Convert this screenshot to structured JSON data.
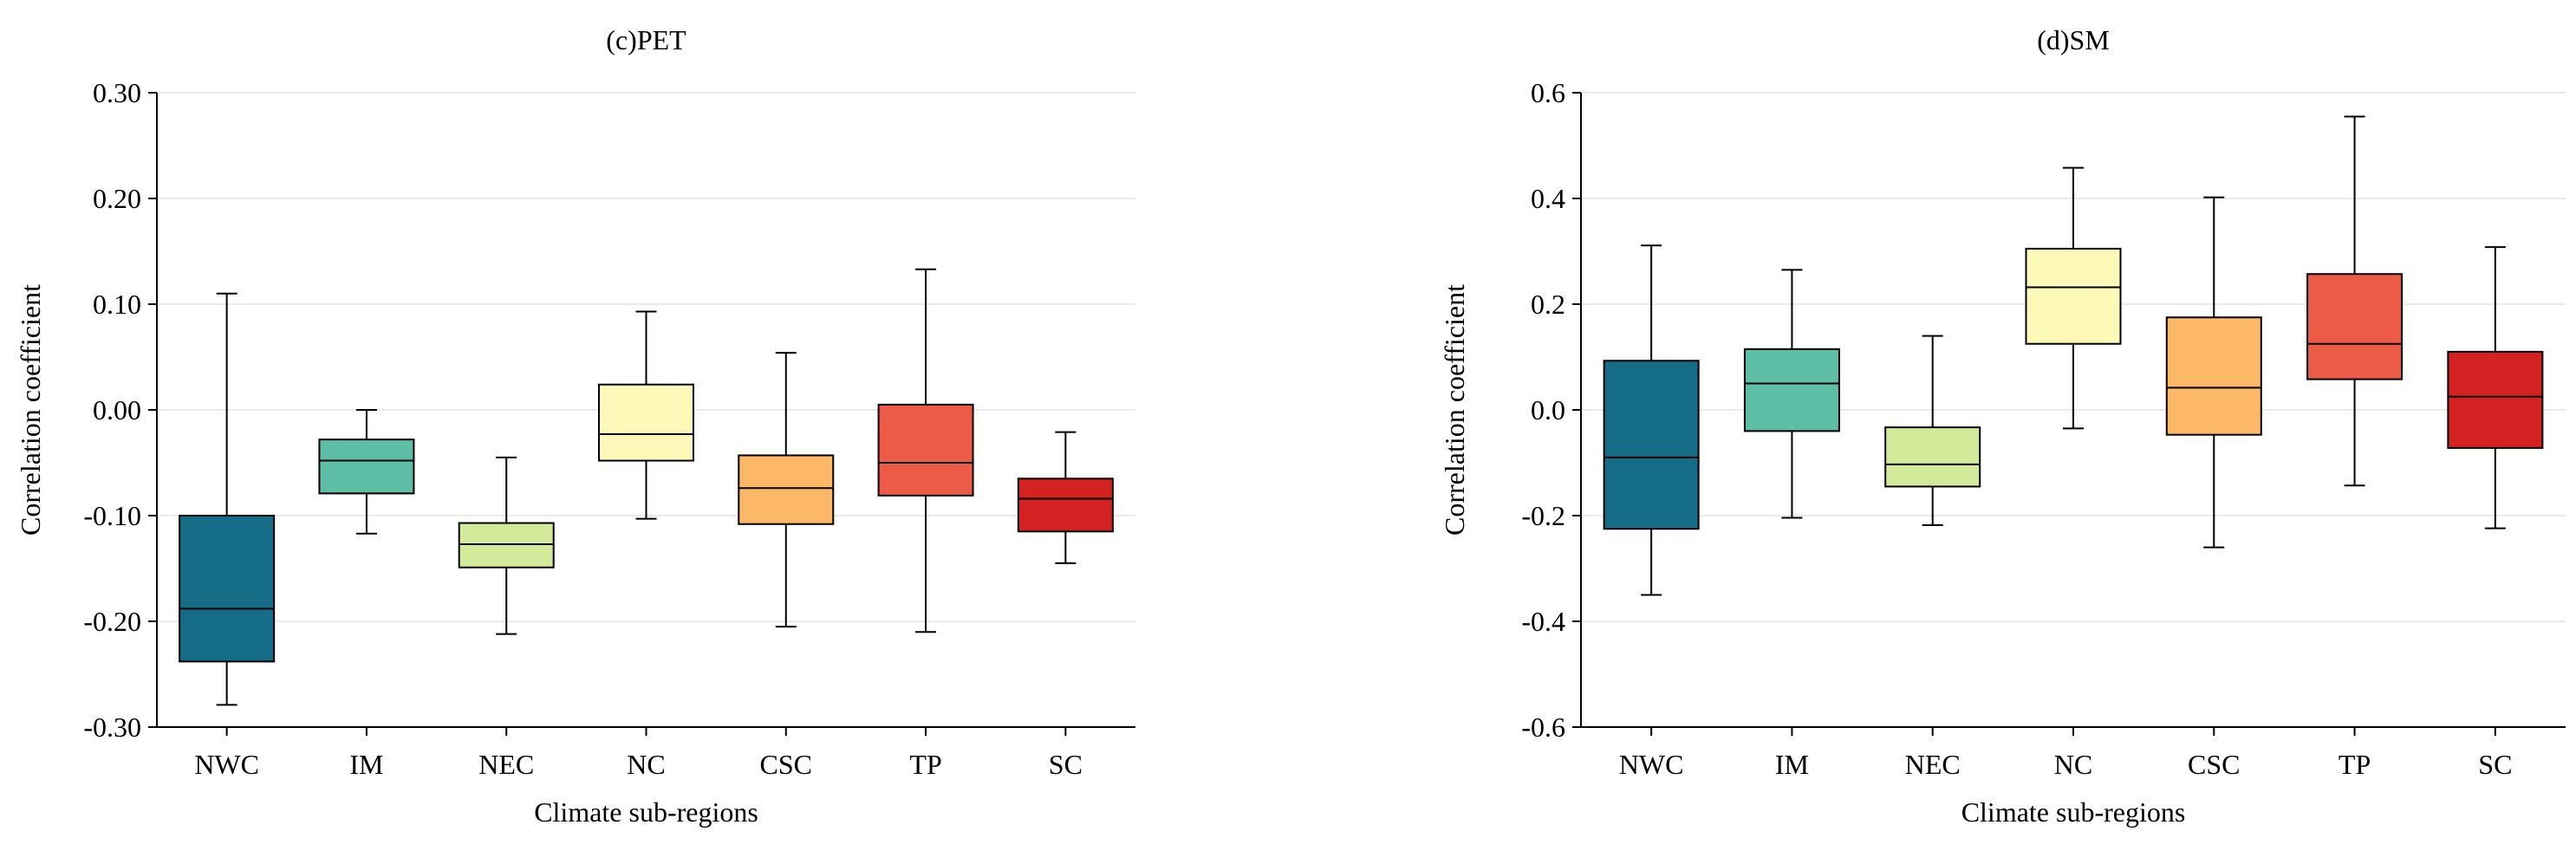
{
  "chart_data": [
    {
      "type": "box",
      "title": "(c)PET",
      "xlabel": "Climate sub-regions",
      "ylabel": "Correlation coefficient",
      "ylim": [
        -0.3,
        0.3
      ],
      "yticks": [
        0.3,
        0.2,
        0.1,
        0.0,
        -0.1,
        -0.2,
        -0.3
      ],
      "ytick_labels": [
        "0.30",
        "0.20",
        "0.10",
        "0.00",
        "-0.10",
        "-0.20",
        "-0.30"
      ],
      "grid": true,
      "categories": [
        "NWC",
        "IM",
        "NEC",
        "NC",
        "CSC",
        "TP",
        "SC"
      ],
      "colors": [
        "#146c86",
        "#5fbfa6",
        "#d2ea99",
        "#fdfab9",
        "#fdb867",
        "#ec5b45",
        "#d42121"
      ],
      "boxes": [
        {
          "whislo": -0.279,
          "q1": -0.238,
          "med": -0.188,
          "q3": -0.1,
          "whishi": 0.11
        },
        {
          "whislo": -0.117,
          "q1": -0.079,
          "med": -0.048,
          "q3": -0.028,
          "whishi": 0.0
        },
        {
          "whislo": -0.212,
          "q1": -0.149,
          "med": -0.127,
          "q3": -0.107,
          "whishi": -0.045
        },
        {
          "whislo": -0.103,
          "q1": -0.048,
          "med": -0.023,
          "q3": 0.024,
          "whishi": 0.093
        },
        {
          "whislo": -0.205,
          "q1": -0.108,
          "med": -0.074,
          "q3": -0.043,
          "whishi": 0.054
        },
        {
          "whislo": -0.21,
          "q1": -0.081,
          "med": -0.05,
          "q3": 0.005,
          "whishi": 0.133
        },
        {
          "whislo": -0.145,
          "q1": -0.115,
          "med": -0.084,
          "q3": -0.065,
          "whishi": -0.021
        }
      ]
    },
    {
      "type": "box",
      "title": "(d)SM",
      "xlabel": "Climate sub-regions",
      "ylabel": "Correlation coefficient",
      "ylim": [
        -0.6,
        0.6
      ],
      "yticks": [
        0.6,
        0.4,
        0.2,
        0.0,
        -0.2,
        -0.4,
        -0.6
      ],
      "ytick_labels": [
        "0.6",
        "0.4",
        "0.2",
        "0.0",
        "-0.2",
        "-0.4",
        "-0.6"
      ],
      "grid": true,
      "categories": [
        "NWC",
        "IM",
        "NEC",
        "NC",
        "CSC",
        "TP",
        "SC"
      ],
      "colors": [
        "#146c86",
        "#5fbfa6",
        "#d2ea99",
        "#fdfab9",
        "#fdb867",
        "#ec5b45",
        "#d42121"
      ],
      "boxes": [
        {
          "whislo": -0.35,
          "q1": -0.225,
          "med": -0.09,
          "q3": 0.093,
          "whishi": 0.311
        },
        {
          "whislo": -0.204,
          "q1": -0.04,
          "med": 0.05,
          "q3": 0.115,
          "whishi": 0.265
        },
        {
          "whislo": -0.218,
          "q1": -0.145,
          "med": -0.103,
          "q3": -0.033,
          "whishi": 0.14
        },
        {
          "whislo": -0.035,
          "q1": 0.125,
          "med": 0.232,
          "q3": 0.305,
          "whishi": 0.458
        },
        {
          "whislo": -0.26,
          "q1": -0.047,
          "med": 0.042,
          "q3": 0.175,
          "whishi": 0.402
        },
        {
          "whislo": -0.143,
          "q1": 0.058,
          "med": 0.125,
          "q3": 0.257,
          "whishi": 0.555
        },
        {
          "whislo": -0.224,
          "q1": -0.072,
          "med": 0.025,
          "q3": 0.11,
          "whishi": 0.308
        }
      ]
    }
  ]
}
